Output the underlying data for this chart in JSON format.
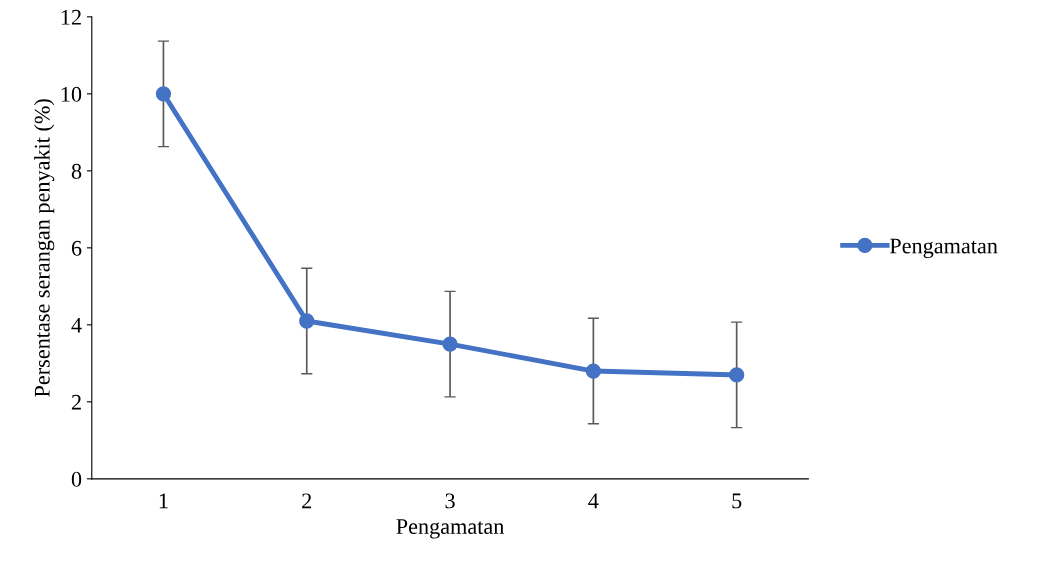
{
  "chart_data": {
    "type": "line",
    "xlabel": "Pengamatan",
    "ylabel": "Persentase serangan penyakit (%)",
    "categories": [
      "1",
      "2",
      "3",
      "4",
      "5"
    ],
    "series": [
      {
        "name": "Pengamatan",
        "color": "#4472c4",
        "values": [
          10.0,
          4.1,
          3.5,
          2.8,
          2.7
        ],
        "errors": [
          1.37,
          1.37,
          1.37,
          1.37,
          1.37
        ]
      }
    ],
    "ylim": [
      0,
      12
    ],
    "yticks": [
      0,
      2,
      4,
      6,
      8,
      10,
      12
    ],
    "grid": false,
    "legend": "right",
    "marker": "circle",
    "line_style": "solid"
  }
}
